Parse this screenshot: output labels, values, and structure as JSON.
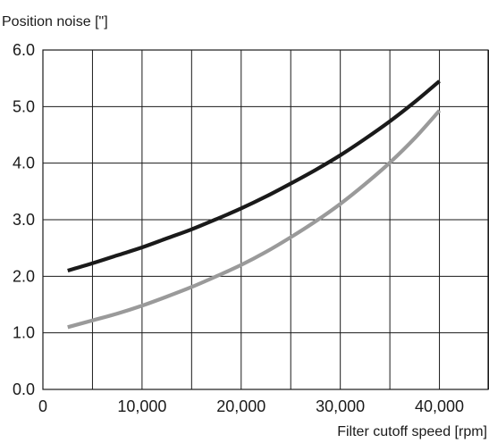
{
  "chart_data": {
    "type": "line",
    "title": "",
    "ylabel": "Position noise [\"]",
    "xlabel": "Filter cutoff speed [rpm]",
    "xlim": [
      0,
      45000
    ],
    "ylim": [
      0,
      6
    ],
    "grid": true,
    "x_ticks": [
      0,
      5000,
      10000,
      15000,
      20000,
      25000,
      30000,
      35000,
      40000,
      45000
    ],
    "x_tick_labels": [
      "0",
      "",
      "10,000",
      "",
      "20,000",
      "",
      "30,000",
      "",
      "40,000",
      ""
    ],
    "y_ticks": [
      0,
      1,
      2,
      3,
      4,
      5,
      6
    ],
    "y_tick_labels": [
      "0.0",
      "1.0",
      "2.0",
      "3.0",
      "4.0",
      "5.0",
      "6.0"
    ],
    "series": [
      {
        "color": "#1a1a1a",
        "x": [
          2500,
          5000,
          7500,
          10000,
          12500,
          15000,
          17500,
          20000,
          22500,
          25000,
          27500,
          30000,
          32500,
          35000,
          37500,
          40000
        ],
        "y": [
          2.1,
          2.23,
          2.37,
          2.51,
          2.67,
          2.83,
          3.01,
          3.2,
          3.41,
          3.64,
          3.88,
          4.14,
          4.43,
          4.74,
          5.08,
          5.45
        ]
      },
      {
        "color": "#9a9a9a",
        "x": [
          2500,
          5000,
          7500,
          10000,
          12500,
          15000,
          17500,
          20000,
          22500,
          25000,
          27500,
          30000,
          32500,
          35000,
          37500,
          40000
        ],
        "y": [
          1.1,
          1.22,
          1.34,
          1.48,
          1.64,
          1.81,
          2.0,
          2.2,
          2.43,
          2.69,
          2.97,
          3.28,
          3.63,
          4.01,
          4.44,
          4.93
        ]
      }
    ]
  }
}
